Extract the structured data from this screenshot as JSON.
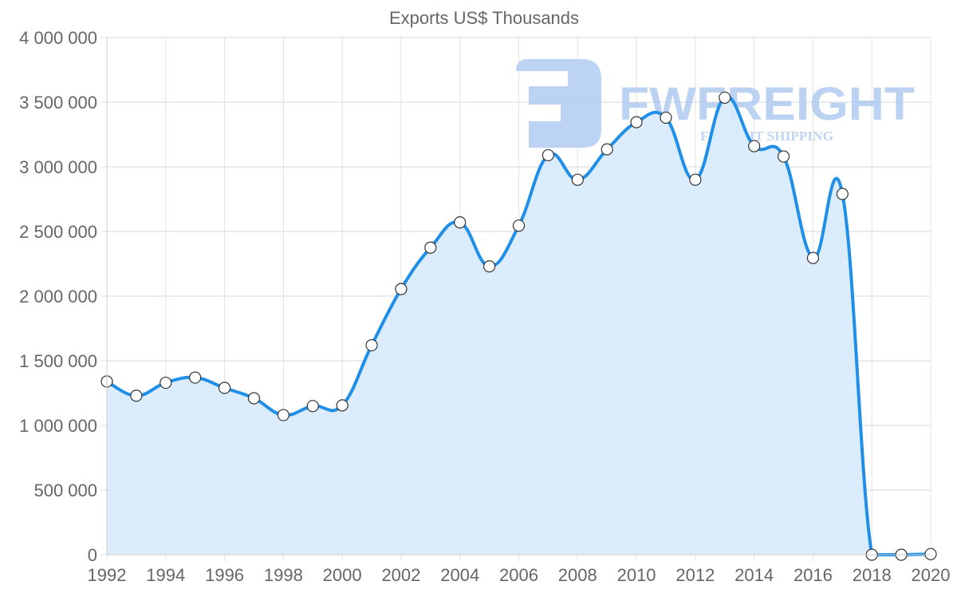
{
  "chart_data": {
    "type": "area",
    "title": "Exports US$ Thousands",
    "xlabel": "",
    "ylabel": "",
    "x": [
      1992,
      1993,
      1994,
      1995,
      1996,
      1997,
      1998,
      1999,
      2000,
      2001,
      2002,
      2003,
      2004,
      2005,
      2006,
      2007,
      2008,
      2009,
      2010,
      2011,
      2012,
      2013,
      2014,
      2015,
      2016,
      2017,
      2018,
      2019,
      2020
    ],
    "series": [
      {
        "name": "Exports US$ Thousands",
        "values": [
          1340000,
          1230000,
          1330000,
          1370000,
          1290000,
          1210000,
          1080000,
          1150000,
          1155000,
          1620000,
          2055000,
          2375000,
          2570000,
          2230000,
          2545000,
          3090000,
          2900000,
          3135000,
          3345000,
          3380000,
          2900000,
          3535000,
          3160000,
          3080000,
          2295000,
          2790000,
          0,
          0,
          5000
        ]
      }
    ],
    "ylim": [
      0,
      4000000
    ],
    "xlim": [
      1992,
      2020
    ],
    "yticks": [
      0,
      500000,
      1000000,
      1500000,
      2000000,
      2500000,
      3000000,
      3500000,
      4000000
    ],
    "ytick_labels": [
      "0",
      "500 000",
      "1 000 000",
      "1 500 000",
      "2 000 000",
      "2 500 000",
      "3 000 000",
      "3 500 000",
      "4 000 000"
    ],
    "xticks": [
      1992,
      1994,
      1996,
      1998,
      2000,
      2002,
      2004,
      2006,
      2008,
      2010,
      2012,
      2014,
      2016,
      2018,
      2020
    ],
    "xtick_labels": [
      "1992",
      "1994",
      "1996",
      "1998",
      "2000",
      "2002",
      "2004",
      "2006",
      "2008",
      "2010",
      "2012",
      "2014",
      "2016",
      "2018",
      "2020"
    ],
    "grid": true,
    "legend": "none",
    "colors": {
      "line": "#1f8fe8",
      "fill": "#d7ebfc",
      "marker_fill": "#ffffff",
      "marker_stroke": "#333333"
    }
  },
  "watermark": {
    "brand": "FWFREIGHT",
    "tagline": "FREIGHT SHIPPING",
    "color": "#a9c4f0"
  }
}
